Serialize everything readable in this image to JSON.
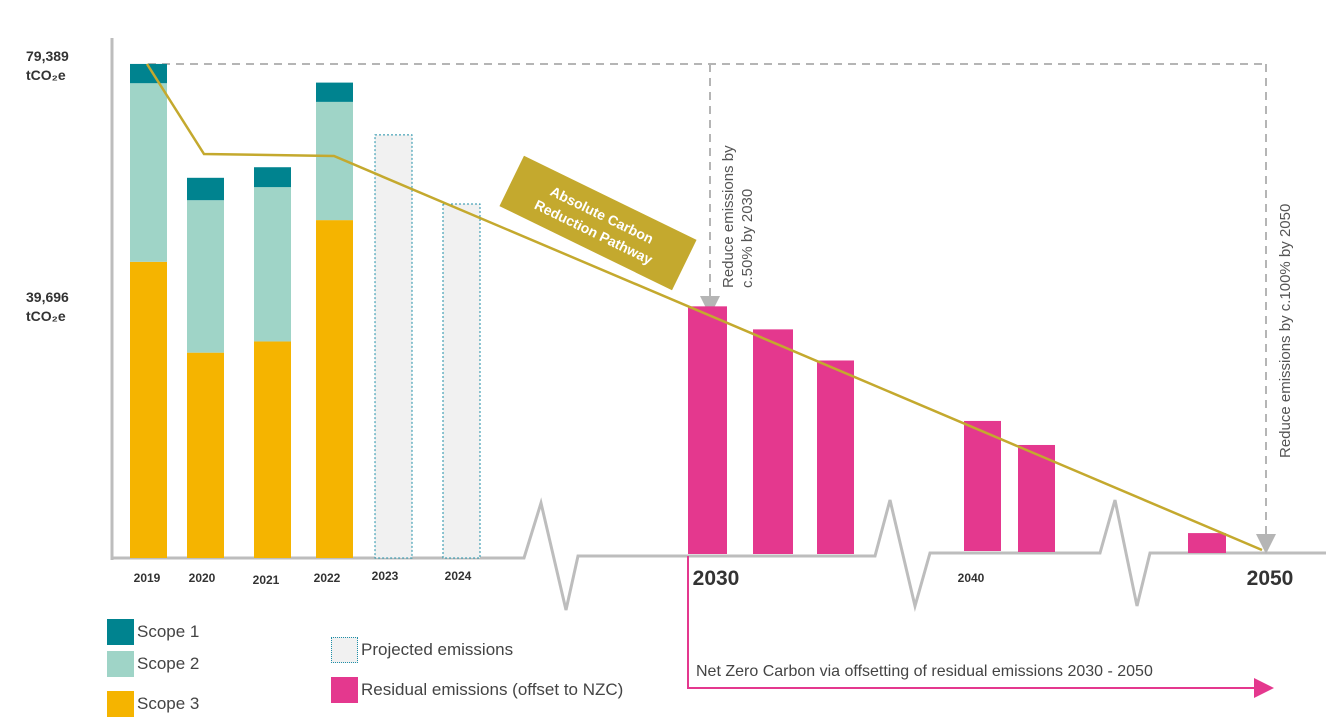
{
  "chart_data": {
    "type": "bar",
    "title": "",
    "y_axis": {
      "top_label": {
        "value": "79,389",
        "unit": "tCO₂e"
      },
      "mid_label": {
        "value": "39,696",
        "unit": "tCO₂e"
      },
      "ylim": [
        0,
        79389
      ]
    },
    "historical": {
      "categories": [
        "2019",
        "2020",
        "2021",
        "2022"
      ],
      "series": [
        {
          "name": "Scope 1",
          "color": "#00838f",
          "values": [
            3100,
            3600,
            3200,
            3100
          ]
        },
        {
          "name": "Scope 2",
          "color": "#9fd4c7",
          "values": [
            28700,
            24500,
            24800,
            19000
          ]
        },
        {
          "name": "Scope 3",
          "color": "#f5b400",
          "values": [
            47600,
            33000,
            34800,
            54300
          ]
        }
      ]
    },
    "projected": {
      "name": "Projected emissions",
      "categories": [
        "2023",
        "2024"
      ],
      "values": [
        68000,
        56900
      ]
    },
    "residual": {
      "name": "Residual emissions (offset to NZC)",
      "color": "#e4388e",
      "values": [
        39800,
        36100,
        31100,
        20900,
        17200,
        3200
      ]
    },
    "x_labels": {
      "small": [
        "2019",
        "2020",
        "2021",
        "2022",
        "2023",
        "2024",
        "2040"
      ],
      "large": [
        "2030",
        "2050"
      ]
    },
    "pathway": {
      "label_line1": "Absolute Carbon",
      "label_line2": "Reduction Pathway",
      "color": "#c4a92e"
    },
    "annotations": {
      "target_2030_line1": "Reduce emissions by",
      "target_2030_line2": "c.50% by 2030",
      "target_2050": "Reduce emissions by c.100% by 2050",
      "net_zero": "Net Zero Carbon via offsetting of residual emissions 2030 - 2050"
    },
    "legend": [
      "Scope 1",
      "Scope 2",
      "Scope 3",
      "Projected emissions",
      "Residual emissions (offset to NZC)"
    ]
  }
}
